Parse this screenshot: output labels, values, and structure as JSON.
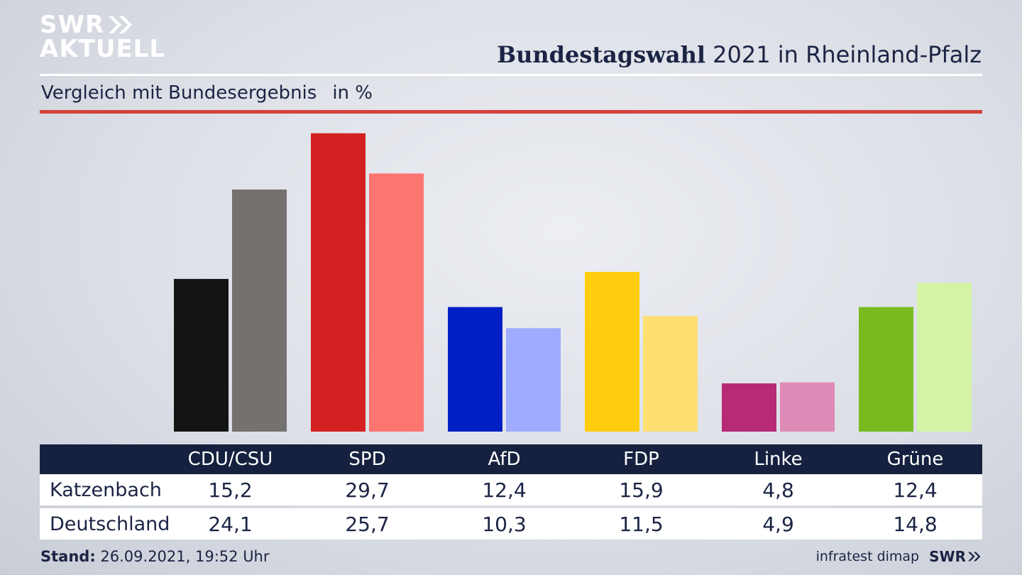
{
  "logo": {
    "line1": "SWR",
    "line2": "AKTUELL"
  },
  "header": {
    "title_bold": "Bundestagswahl",
    "title_rest": "2021 in Rheinland-Pfalz"
  },
  "subtitle": {
    "text": "Vergleich mit Bundesergebnis",
    "unit": "in %"
  },
  "colors": {
    "primary": [
      "#141414",
      "#d42020",
      "#0020c4",
      "#ffcc0e",
      "#b72a74",
      "#79bb1f"
    ],
    "secondary": [
      "#74716f",
      "#fd7571",
      "#9eabfe",
      "#fee072",
      "#de8ab6",
      "#d3f4a5"
    ],
    "header_bg": "#16213f",
    "accent_rule": "#d5423a"
  },
  "chart_data": {
    "type": "bar",
    "categories": [
      "CDU/CSU",
      "SPD",
      "AfD",
      "FDP",
      "Linke",
      "Grüne"
    ],
    "series": [
      {
        "name": "Katzenbach",
        "values": [
          15.2,
          29.7,
          12.4,
          15.9,
          4.8,
          12.4
        ]
      },
      {
        "name": "Deutschland",
        "values": [
          24.1,
          25.7,
          10.3,
          11.5,
          4.9,
          14.8
        ]
      }
    ],
    "ylim": [
      0,
      30
    ]
  },
  "table": {
    "rows": [
      {
        "label": "Katzenbach",
        "values": [
          "15,2",
          "29,7",
          "12,4",
          "15,9",
          "4,8",
          "12,4"
        ]
      },
      {
        "label": "Deutschland",
        "values": [
          "24,1",
          "25,7",
          "10,3",
          "11,5",
          "4,9",
          "14,8"
        ]
      }
    ]
  },
  "footer": {
    "stand_label": "Stand:",
    "stand_value": "26.09.2021, 19:52 Uhr",
    "source": "infratest dimap",
    "brand": "SWR"
  }
}
